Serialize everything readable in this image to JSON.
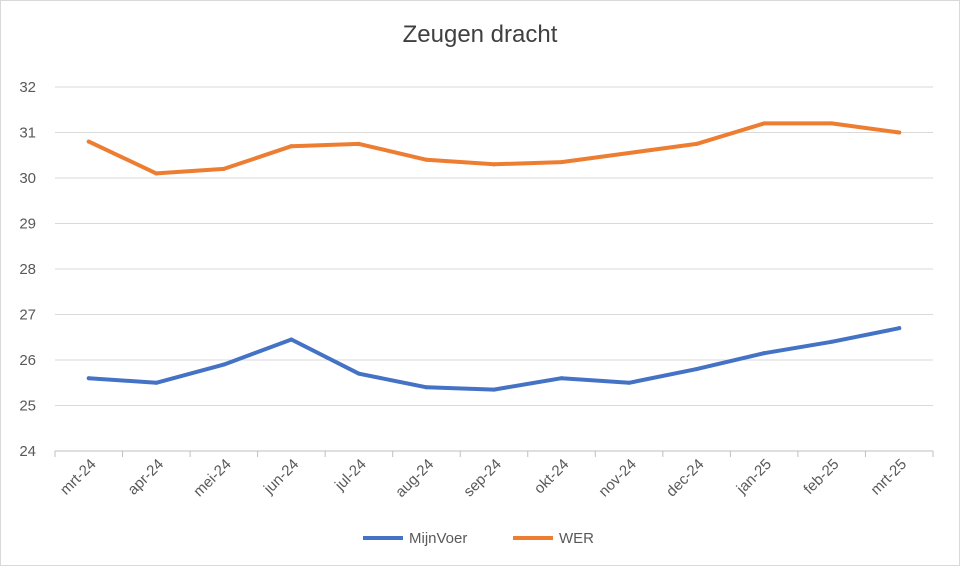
{
  "chart_data": {
    "type": "line",
    "title": "Zeugen dracht",
    "xlabel": "",
    "ylabel": "",
    "categories": [
      "mrt-24",
      "apr-24",
      "mei-24",
      "jun-24",
      "jul-24",
      "aug-24",
      "sep-24",
      "okt-24",
      "nov-24",
      "dec-24",
      "jan-25",
      "feb-25",
      "mrt-25"
    ],
    "ylim": [
      24,
      32
    ],
    "yticks": [
      24,
      25,
      26,
      27,
      28,
      29,
      30,
      31,
      32
    ],
    "grid": true,
    "legend_position": "bottom",
    "series": [
      {
        "name": "MijnVoer",
        "color": "#4472c4",
        "values": [
          25.6,
          25.5,
          25.9,
          26.45,
          25.7,
          25.4,
          25.35,
          25.6,
          25.5,
          25.8,
          26.15,
          26.4,
          26.7
        ]
      },
      {
        "name": "WER",
        "color": "#ed7d31",
        "values": [
          30.8,
          30.1,
          30.2,
          30.7,
          30.75,
          30.4,
          30.3,
          30.35,
          30.55,
          30.75,
          31.2,
          31.2,
          31.0
        ]
      }
    ]
  }
}
